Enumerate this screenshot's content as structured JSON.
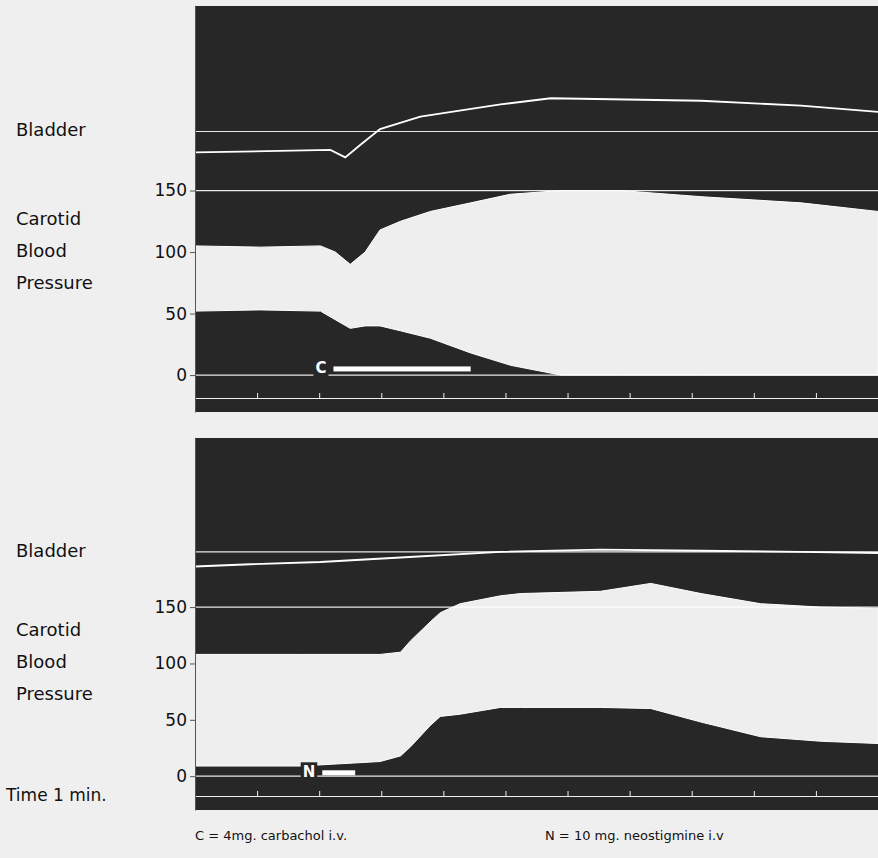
{
  "chart_data": [
    {
      "type": "line",
      "y_label": "Carotid Blood Pressure",
      "xlim": [
        0,
        11
      ],
      "xticks": [
        1,
        2,
        3,
        4,
        5,
        6,
        7,
        8,
        9,
        10
      ],
      "ylim": [
        -30,
        300
      ],
      "yticks": [
        0,
        50,
        100,
        150
      ],
      "tick_labels": "y",
      "grid": false,
      "baselines": [
        198,
        150,
        0
      ],
      "series": [
        {
          "name": "Bladder",
          "color": "#ffffff",
          "x": [
            0,
            2.18,
            2.42,
            2.66,
            2.98,
            3.63,
            4.92,
            5.73,
            8.15,
            9.76,
            11
          ],
          "values": [
            181,
            183,
            177,
            187,
            200,
            210,
            220,
            225,
            223,
            219,
            214
          ]
        },
        {
          "type": "area",
          "color": "#ffffff",
          "x": [
            0,
            1.05,
            2.02,
            2.26,
            2.5,
            2.74,
            2.98,
            3.31,
            3.79,
            4.44,
            5.08,
            5.89,
            6.85,
            8.15,
            9.76,
            11
          ],
          "values": [
            105,
            104,
            105,
            100,
            90,
            100,
            118,
            125,
            133,
            140,
            147,
            150,
            150,
            145,
            140,
            133
          ],
          "low": [
            52,
            53,
            52,
            45,
            38,
            40,
            40,
            36,
            30,
            18,
            8,
            0,
            0,
            0,
            0,
            0
          ]
        }
      ],
      "annotations": [
        {
          "text": "C",
          "x_start": 2.23,
          "x_end": 4.44,
          "y": 5
        }
      ]
    },
    {
      "type": "line",
      "y_label": "Carotid Blood Pressure",
      "x_label": "Time 1 min.",
      "xlim": [
        0,
        11
      ],
      "xticks": [
        1,
        2,
        3,
        4,
        5,
        6,
        7,
        8,
        9,
        10
      ],
      "ylim": [
        -30,
        300
      ],
      "yticks": [
        0,
        50,
        100,
        150
      ],
      "tick_labels": "y",
      "grid": false,
      "baselines": [
        199,
        150,
        0
      ],
      "series": [
        {
          "name": "Bladder",
          "color": "#ffffff",
          "x": [
            0,
            0.89,
            2.02,
            3.31,
            4.92,
            6.53,
            8.15,
            9.76,
            11
          ],
          "values": [
            186,
            188,
            190,
            194,
            199,
            201,
            200,
            199,
            198
          ]
        },
        {
          "type": "area",
          "color": "#ffffff",
          "x": [
            0,
            1.69,
            2.98,
            3.31,
            3.47,
            3.79,
            3.95,
            4.27,
            4.92,
            5.24,
            6.53,
            7.34,
            8.15,
            9.11,
            10.08,
            11
          ],
          "values": [
            108,
            108,
            108,
            110,
            120,
            137,
            145,
            153,
            160,
            162,
            164,
            171,
            162,
            153,
            150,
            149
          ],
          "low": [
            9,
            9,
            13,
            18,
            26,
            45,
            53,
            55,
            61,
            61,
            61,
            60,
            48,
            35,
            31,
            29
          ]
        }
      ],
      "annotations": [
        {
          "text": "N",
          "x_start": 2.05,
          "x_end": 2.58,
          "y": 3
        }
      ]
    }
  ],
  "caption": [
    "C = 4mg. carbachol i.v.",
    "N = 10 mg. neostigmine i.v"
  ]
}
